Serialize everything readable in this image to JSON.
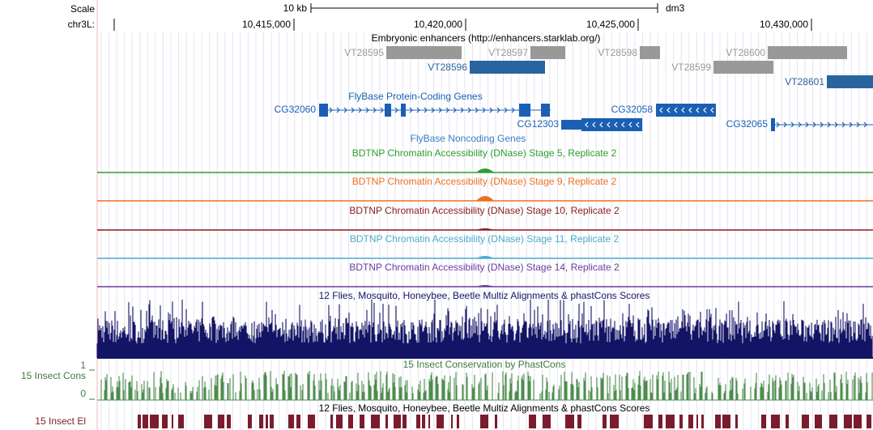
{
  "ruler": {
    "scale_label": "Scale",
    "scale_bar": "10 kb",
    "assembly": "dm3",
    "chrom": "chr3L:",
    "positions": [
      "10,415,000",
      "10,420,000",
      "10,425,000",
      "10,430,000"
    ]
  },
  "enhancers": {
    "title": "Embryonic enhancers (http://enhancers.starklab.org/)",
    "items": [
      "VT28595",
      "VT28597",
      "VT28598",
      "VT28600",
      "VT28596",
      "VT28599",
      "VT28601"
    ]
  },
  "genes": {
    "title": "FlyBase Protein-Coding Genes",
    "items": [
      "CG32060",
      "CG32058",
      "CG12303",
      "CG32065"
    ]
  },
  "noncoding": {
    "title": "FlyBase Noncoding Genes"
  },
  "dnase": [
    "BDTNP Chromatin Accessibility (DNase) Stage 5, Replicate 2",
    "BDTNP Chromatin Accessibility (DNase) Stage 9, Replicate 2",
    "BDTNP Chromatin Accessibility (DNase) Stage 10, Replicate 2",
    "BDTNP Chromatin Accessibility (DNase) Stage 11, Replicate 2",
    "BDTNP Chromatin Accessibility (DNase) Stage 14, Replicate 2"
  ],
  "multiz": {
    "title": "12 Flies, Mosquito, Honeybee, Beetle Multiz Alignments & phastCons Scores"
  },
  "phastcons": {
    "title": "15 Insect Conservation by PhastCons",
    "label": "15 Insect Cons",
    "max": "1",
    "min": "0"
  },
  "elements": {
    "title": "12 Flies, Mosquito, Honeybee, Beetle Multiz Alignments & phastCons Scores",
    "label": "15 Insect El"
  }
}
